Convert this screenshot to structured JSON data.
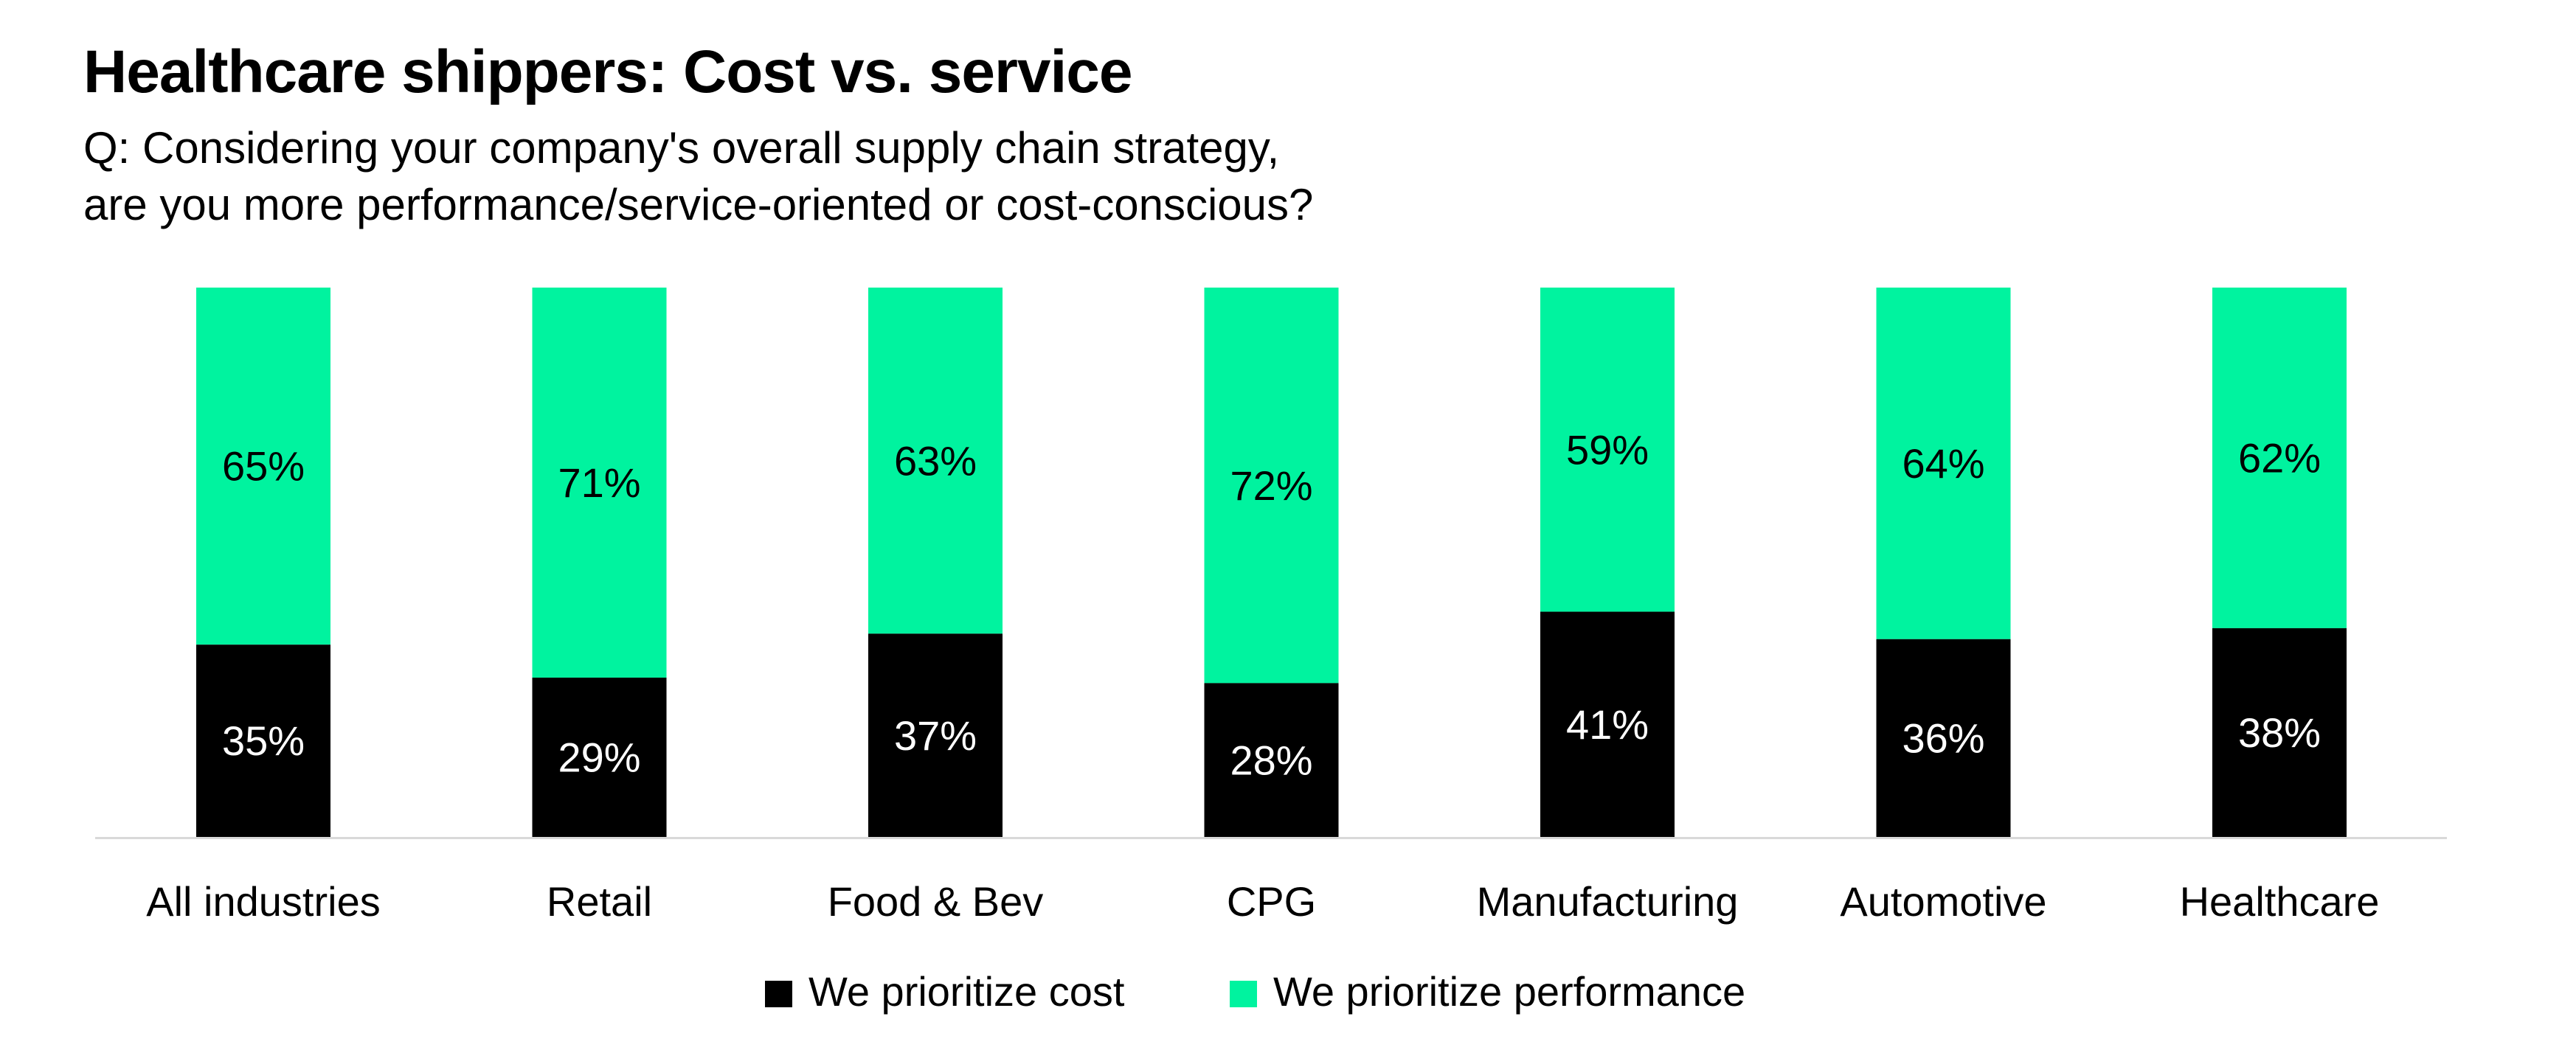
{
  "header": {
    "title": "Healthcare shippers: Cost vs. service",
    "subtitle_lines": [
      "Q: Considering your company's overall supply chain strategy,",
      "are you more performance/service-oriented or cost-conscious?"
    ]
  },
  "colors": {
    "cost": "#000000",
    "performance": "#00F39F",
    "axis": "#D9D9D9",
    "label_on_dark": "#FFFFFF",
    "label_on_light": "#000000"
  },
  "legend": {
    "items": [
      {
        "label": "We prioritize cost",
        "series": "cost"
      },
      {
        "label": "We prioritize performance",
        "series": "performance"
      }
    ]
  },
  "chart_data": {
    "type": "bar",
    "stacked": true,
    "title": "Healthcare shippers: Cost vs. service",
    "subtitle": "Q: Considering your company's overall supply chain strategy, are you more performance/service-oriented or cost-conscious?",
    "xlabel": "",
    "ylabel": "",
    "ylim": [
      0,
      100
    ],
    "grid": false,
    "legend_position": "bottom",
    "categories": [
      "All industries",
      "Retail",
      "Food & Bev",
      "CPG",
      "Manufacturing",
      "Automotive",
      "Healthcare"
    ],
    "series": [
      {
        "name": "We prioritize cost",
        "key": "cost",
        "values": [
          35,
          29,
          37,
          28,
          41,
          36,
          38
        ]
      },
      {
        "name": "We prioritize performance",
        "key": "performance",
        "values": [
          65,
          71,
          63,
          72,
          59,
          64,
          62
        ]
      }
    ],
    "data_label_format": "{v}%"
  }
}
